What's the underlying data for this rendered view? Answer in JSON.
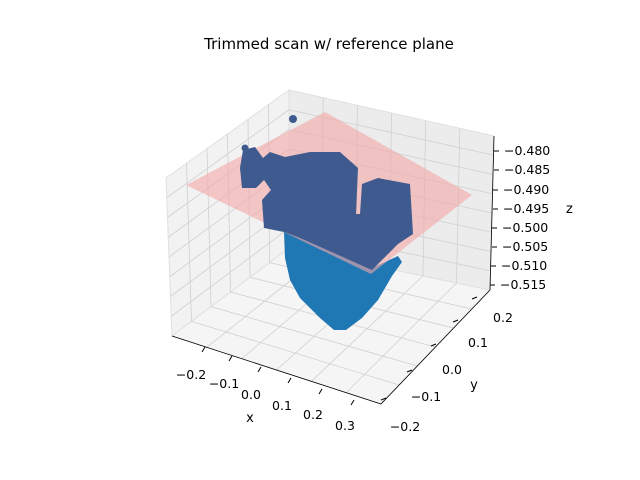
{
  "chart_data": {
    "type": "scatter",
    "projection": "3d",
    "title": "Trimmed scan w/ reference plane",
    "xlabel": "x",
    "ylabel": "y",
    "zlabel": "z",
    "x_ticks": [
      "−0.2",
      "−0.1",
      "0.0",
      "0.1",
      "0.2",
      "0.3"
    ],
    "y_ticks": [
      "−0.2",
      "−0.1",
      "0.0",
      "0.1",
      "0.2"
    ],
    "z_ticks": [
      "−0.480",
      "−0.485",
      "−0.490",
      "−0.495",
      "−0.500",
      "−0.505",
      "−0.510",
      "−0.515"
    ],
    "xlim": [
      -0.25,
      0.35
    ],
    "ylim": [
      -0.22,
      0.22
    ],
    "zlim": [
      -0.517,
      -0.477
    ],
    "grid": true,
    "colors": {
      "points": "#1f77b4",
      "points_on_plane": "#3e5a8e",
      "reference_plane": "#f4a6a6",
      "pane": "#f2f2f2",
      "grid": "#d0d0d0"
    },
    "series": [
      {
        "kind": "scatter",
        "points_x": [
          -0.2,
          -0.15,
          -0.1,
          -0.05,
          0.0,
          0.05,
          0.1,
          0.15,
          0.2,
          0.25,
          0.0,
          0.05,
          0.1,
          0.05
        ],
        "points_y": [
          0.05,
          0.08,
          0.1,
          0.06,
          0.02,
          -0.02,
          -0.04,
          -0.06,
          -0.02,
          0.02,
          -0.1,
          -0.12,
          -0.08,
          -0.15
        ],
        "points_z": [
          -0.489,
          -0.49,
          -0.491,
          -0.49,
          -0.492,
          -0.493,
          -0.494,
          -0.493,
          -0.492,
          -0.491,
          -0.505,
          -0.51,
          -0.508,
          -0.515
        ]
      },
      {
        "kind": "surface",
        "plane_x": [
          -0.25,
          0.35
        ],
        "plane_y": [
          -0.22,
          0.22
        ],
        "plane_z": -0.491
      }
    ]
  }
}
